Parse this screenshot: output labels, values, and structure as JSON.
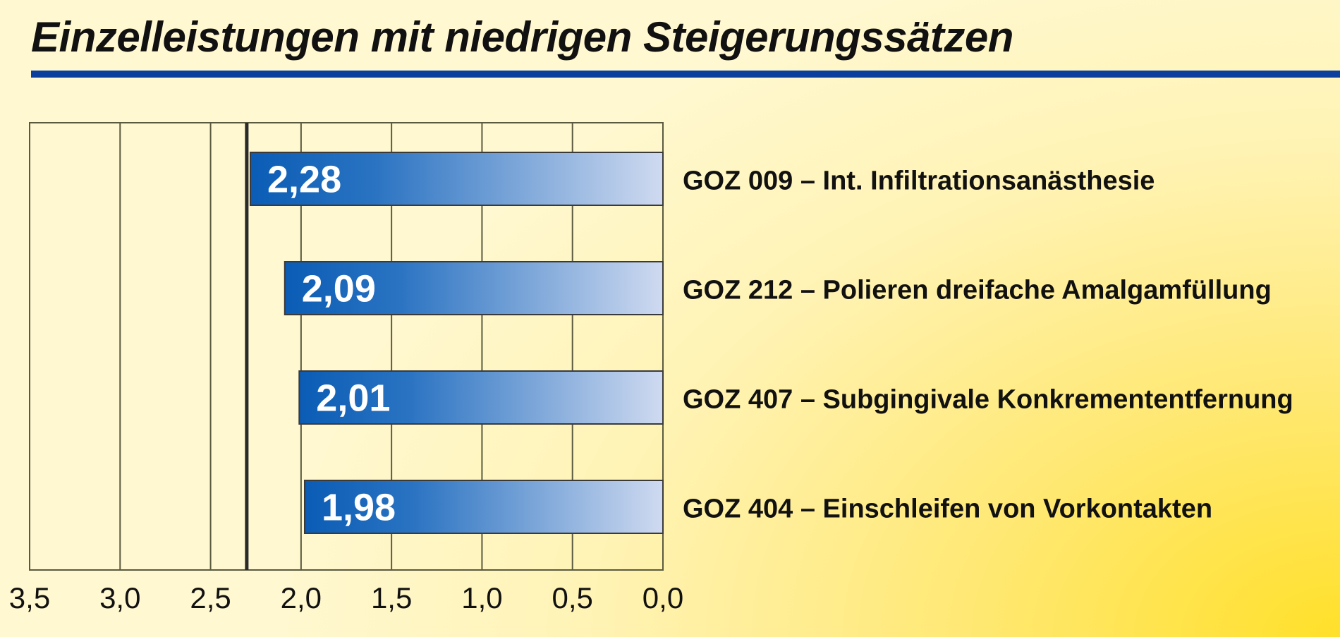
{
  "chart_data": {
    "type": "bar",
    "orientation": "horizontal",
    "title": "Einzelleistungen mit niedrigen Steigerungssätzen",
    "xlabel": "",
    "ylabel": "",
    "xlim": [
      0,
      3.5
    ],
    "x_reversed": true,
    "reference_line": 2.3,
    "ticks": [
      {
        "value": 3.5,
        "label": "3,5"
      },
      {
        "value": 3.0,
        "label": "3,0"
      },
      {
        "value": 2.5,
        "label": "2,5"
      },
      {
        "value": 2.0,
        "label": "2,0"
      },
      {
        "value": 1.5,
        "label": "1,5"
      },
      {
        "value": 1.0,
        "label": "1,0"
      },
      {
        "value": 0.5,
        "label": "0,5"
      },
      {
        "value": 0.0,
        "label": "0,0"
      }
    ],
    "bars": [
      {
        "value": 2.28,
        "value_label": "2,28",
        "category": "GOZ 009 – Int. Infiltrationsanästhesie"
      },
      {
        "value": 2.09,
        "value_label": "2,09",
        "category": "GOZ 212 – Polieren dreifache Amalgamfüllung"
      },
      {
        "value": 2.01,
        "value_label": "2,01",
        "category": "GOZ 407 – Subgingivale Konkremententfernung"
      },
      {
        "value": 1.98,
        "value_label": "1,98",
        "category": "GOZ 404 – Einschleifen von Vorkontakten"
      }
    ],
    "colors": {
      "bar_dark": "#0a5cb5",
      "bar_light": "#cfdaf0",
      "title_rule": "#0a3f9e",
      "grid": "#5a5a40"
    },
    "grid": true,
    "legend": "none"
  }
}
